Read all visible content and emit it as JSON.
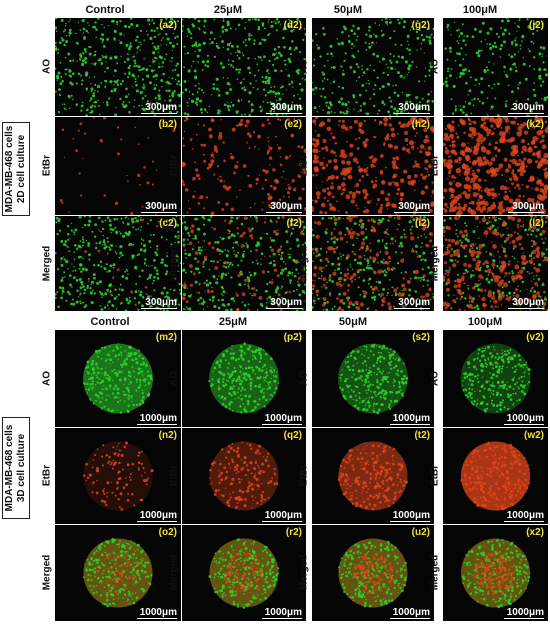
{
  "cell_line_2d": [
    "MDA-MB-468 cells",
    "2D cell culture"
  ],
  "cell_line_3d": [
    "MDA-MB-468 cells",
    "3D cell culture"
  ],
  "columns": [
    "Control",
    "25μM",
    "50μM",
    "100μM"
  ],
  "rows_2d": [
    {
      "label": "AO",
      "scale": "300μm",
      "tags": [
        "(a2)",
        "(d2)",
        "(g2)",
        "(j2)"
      ]
    },
    {
      "label": "EtBr",
      "scale": "300μm",
      "tags": [
        "(b2)",
        "(e2)",
        "(h2)",
        "(k2)"
      ]
    },
    {
      "label": "Merged",
      "scale": "300μm",
      "tags": [
        "(c2)",
        "(f2)",
        "(i2)",
        "(l2)"
      ]
    }
  ],
  "rows_3d": [
    {
      "label": "AO",
      "scale": "1000μm",
      "tags": [
        "(m2)",
        "(p2)",
        "(s2)",
        "(v2)"
      ]
    },
    {
      "label": "EtBr",
      "scale": "1000μm",
      "tags": [
        "(n2)",
        "(q2)",
        "(t2)",
        "(w2)"
      ]
    },
    {
      "label": "Merged",
      "scale": "1000μm",
      "tags": [
        "(o2)",
        "(r2)",
        "(u2)",
        "(x2)"
      ]
    }
  ],
  "colors": {
    "ao_green": "#2ecf2a",
    "etbr_red": "#e0451b",
    "merged_yellow": "#d8b820",
    "label_yellow": "#f4e23a",
    "background": "#050505"
  }
}
